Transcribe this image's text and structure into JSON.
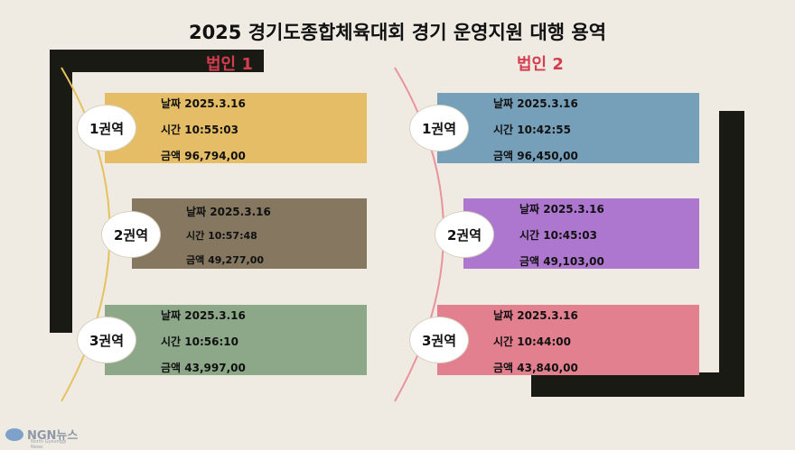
{
  "title": "2025 경기도종합체육대회 경기 운영지원 대행 용역",
  "corps": [
    {
      "label": "법인 1",
      "regions": [
        {
          "badge": "1권역",
          "date": "날짜 2025.3.16",
          "time": "시간 10:55:03",
          "amount": "금액 96,794,00",
          "color": "#e5bd66"
        },
        {
          "badge": "2권역",
          "date": "날짜 2025.3.16",
          "time": "시간 10:57:48",
          "amount": "금액 49,277,00",
          "color": "#857760"
        },
        {
          "badge": "3권역",
          "date": "날짜 2025.3.16",
          "time": "시간 10:56:10",
          "amount": "금액 43,997,00",
          "color": "#8da889"
        }
      ]
    },
    {
      "label": "법인 2",
      "regions": [
        {
          "badge": "1권역",
          "date": "날짜 2025.3.16",
          "time": "시간 10:42:55",
          "amount": "금액 96,450,00",
          "color": "#76a0b9"
        },
        {
          "badge": "2권역",
          "date": "날짜 2025.3.16",
          "time": "시간 10:45:03",
          "amount": "금액 49,103,00",
          "color": "#ae77cf"
        },
        {
          "badge": "3권역",
          "date": "날짜 2025.3.16",
          "time": "시간 10:44:00",
          "amount": "금액 43,840,00",
          "color": "#e2808f"
        }
      ]
    }
  ],
  "logo": {
    "name": "NGN뉴스",
    "sub": "North Gyeonggi News"
  },
  "colors": {
    "background": "#efebe3",
    "bracket": "#1a1a14",
    "corp_label": "#d43d4f",
    "arc_left": "#e6c25e",
    "arc_right": "#e8949c"
  }
}
